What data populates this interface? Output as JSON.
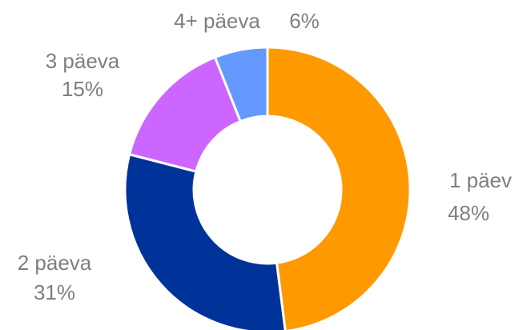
{
  "chart_data": {
    "type": "donut",
    "categories": [
      "1 päev",
      "2 päeva",
      "3 päeva",
      "4+ päeva"
    ],
    "values": [
      48,
      31,
      15,
      6
    ],
    "value_labels": [
      "48%",
      "31%",
      "15%",
      "6%"
    ],
    "colors": [
      "#ff9900",
      "#003399",
      "#cc66ff",
      "#6699ff"
    ]
  }
}
